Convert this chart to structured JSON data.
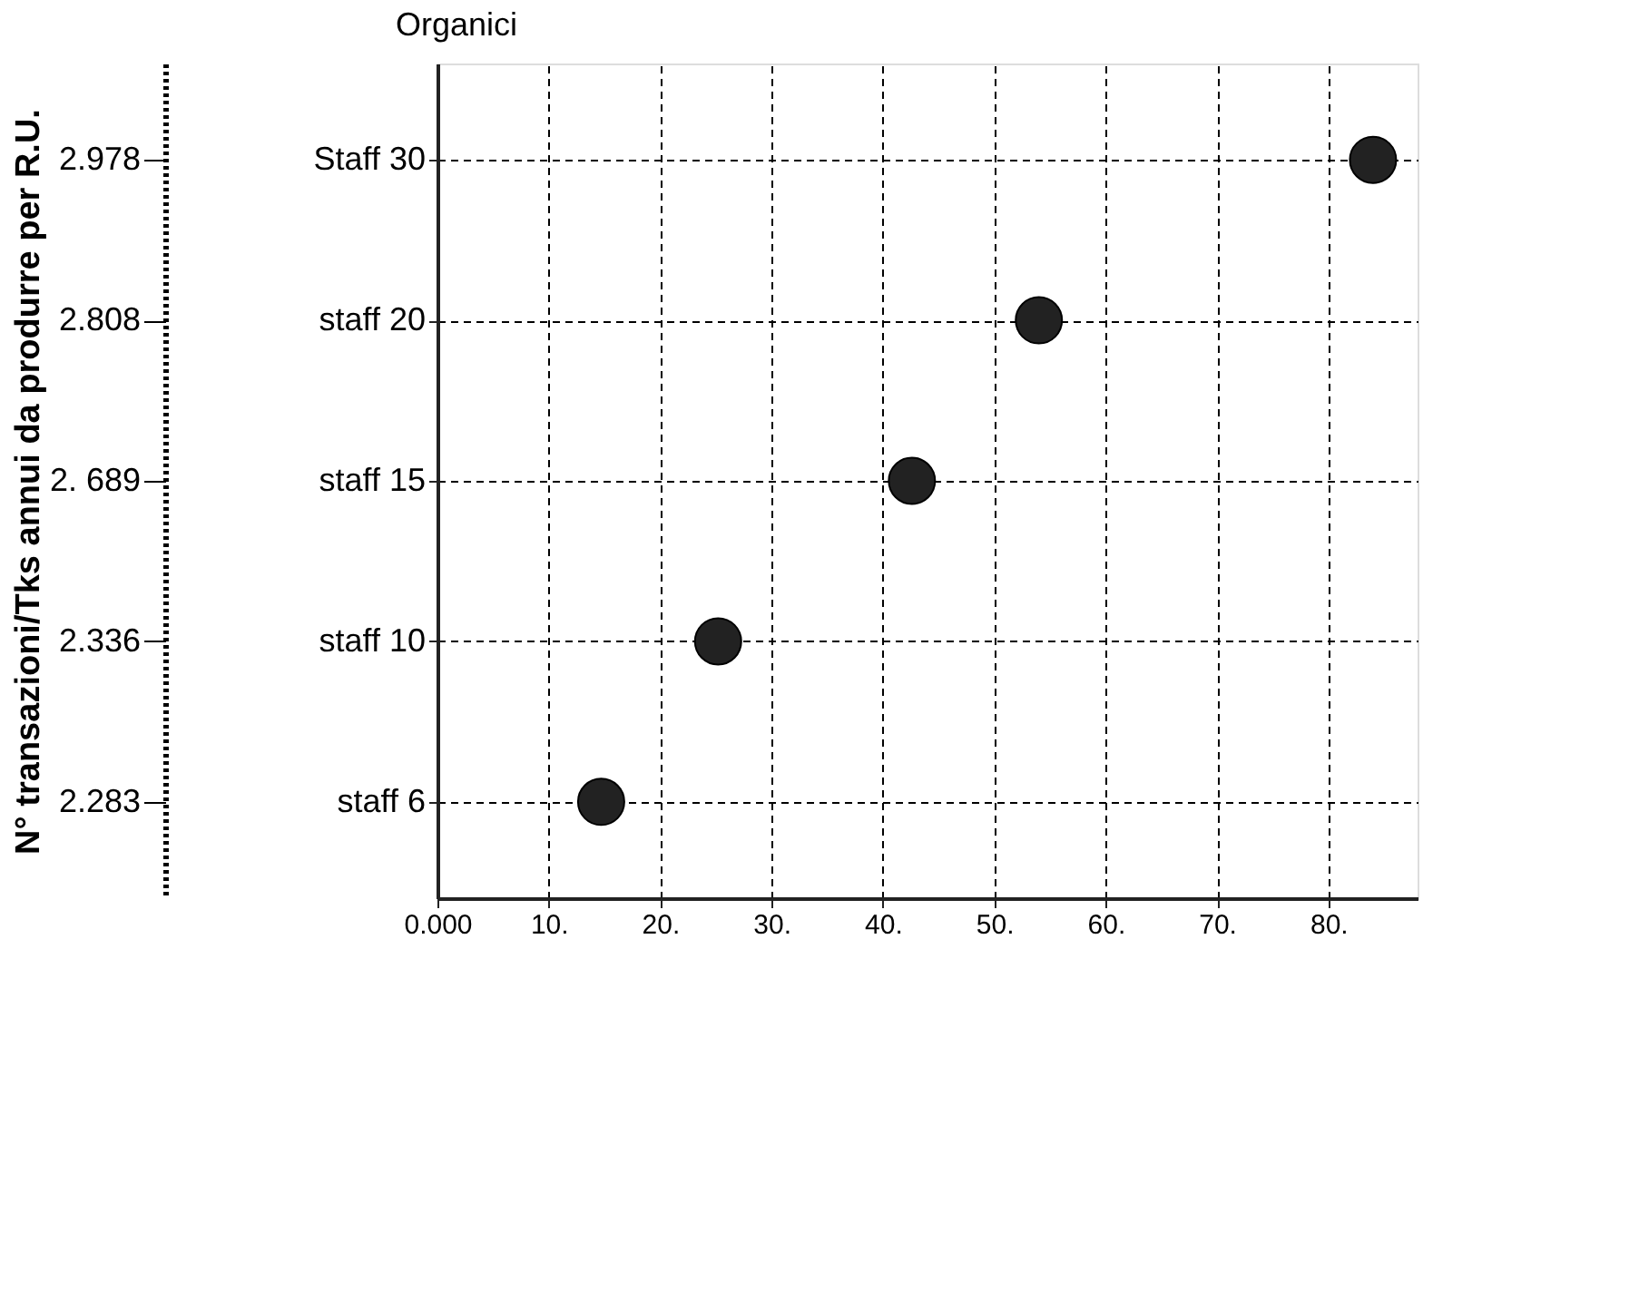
{
  "chart_data": {
    "type": "scatter",
    "orientation": "horizontal",
    "categories": [
      "Staff 30",
      "staff 20",
      "staff 15",
      "staff 10",
      "staff  6"
    ],
    "y2_categories": [
      "2.978",
      "2.808",
      "2. 689",
      "2.336",
      "2.283"
    ],
    "values": [
      84,
      54,
      42.6,
      25.2,
      14.7
    ],
    "color": "#222222",
    "marker": "circle",
    "ylabel": "Organici",
    "annotations": [
      "N° transazioni/Tks annui  da produrre per R.U."
    ],
    "xlim": [
      0,
      88
    ],
    "xticks": [
      {
        "value": 0,
        "label": "0.000"
      },
      {
        "value": 10,
        "label": "10."
      },
      {
        "value": 20,
        "label": "20."
      },
      {
        "value": 30,
        "label": "30."
      },
      {
        "value": 40,
        "label": "40."
      },
      {
        "value": 50,
        "label": "50."
      },
      {
        "value": 60,
        "label": "60."
      },
      {
        "value": 70,
        "label": "70."
      },
      {
        "value": 80,
        "label": "80."
      }
    ],
    "grid": true,
    "line_style": "dashed"
  }
}
